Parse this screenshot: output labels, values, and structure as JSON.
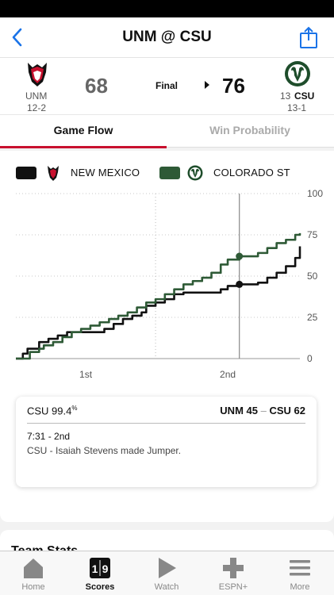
{
  "header": {
    "title": "UNM @ CSU"
  },
  "game": {
    "status": "Final",
    "home": {
      "abbr": "UNM",
      "record": "12-2",
      "score": "68"
    },
    "away": {
      "abbr": "CSU",
      "rank": "13",
      "record": "13-1",
      "score": "76"
    }
  },
  "tabs": {
    "game_flow": "Game Flow",
    "win_probability": "Win Probability"
  },
  "legend": {
    "team1": "NEW MEXICO",
    "team2": "COLORADO ST"
  },
  "colors": {
    "new_mexico": "#111111",
    "colorado_st": "#2e5a36",
    "accent": "#c8102e"
  },
  "chart_data": {
    "type": "line",
    "x_labels": [
      "1st",
      "2nd"
    ],
    "y_ticks": [
      "0",
      "25",
      "50",
      "75",
      "100"
    ],
    "ylim": [
      0,
      100
    ],
    "series": [
      {
        "name": "NEW MEXICO",
        "values": [
          [
            0,
            0
          ],
          [
            3,
            3
          ],
          [
            5,
            6
          ],
          [
            8,
            6
          ],
          [
            10,
            10
          ],
          [
            14,
            12
          ],
          [
            18,
            14
          ],
          [
            22,
            16
          ],
          [
            26,
            16
          ],
          [
            30,
            16
          ],
          [
            34,
            16
          ],
          [
            38,
            18
          ],
          [
            42,
            21
          ],
          [
            46,
            24
          ],
          [
            50,
            26
          ],
          [
            54,
            28
          ],
          [
            56,
            32
          ],
          [
            60,
            34
          ],
          [
            64,
            36
          ],
          [
            68,
            39
          ],
          [
            72,
            40
          ],
          [
            76,
            40
          ],
          [
            80,
            40
          ],
          [
            84,
            40
          ],
          [
            88,
            42
          ],
          [
            91,
            44
          ],
          [
            96,
            45
          ],
          [
            100,
            45
          ],
          [
            104,
            46
          ],
          [
            108,
            49
          ],
          [
            112,
            52
          ],
          [
            116,
            56
          ],
          [
            120,
            61
          ],
          [
            122,
            68
          ]
        ]
      },
      {
        "name": "COLORADO ST",
        "values": [
          [
            0,
            0
          ],
          [
            4,
            0
          ],
          [
            6,
            4
          ],
          [
            8,
            4
          ],
          [
            10,
            6
          ],
          [
            12,
            8
          ],
          [
            16,
            10
          ],
          [
            20,
            13
          ],
          [
            24,
            16
          ],
          [
            28,
            18
          ],
          [
            32,
            20
          ],
          [
            36,
            22
          ],
          [
            40,
            24
          ],
          [
            44,
            26
          ],
          [
            48,
            28
          ],
          [
            52,
            31
          ],
          [
            56,
            34
          ],
          [
            60,
            36
          ],
          [
            64,
            39
          ],
          [
            68,
            42
          ],
          [
            72,
            45
          ],
          [
            76,
            47
          ],
          [
            80,
            49
          ],
          [
            84,
            52
          ],
          [
            88,
            57
          ],
          [
            91,
            60
          ],
          [
            96,
            62
          ],
          [
            100,
            62
          ],
          [
            104,
            64
          ],
          [
            108,
            67
          ],
          [
            112,
            70
          ],
          [
            116,
            72
          ],
          [
            120,
            75
          ],
          [
            122,
            76
          ]
        ]
      }
    ],
    "x_max": 122,
    "halftime_x": 60,
    "cursor_x": 96,
    "markers": [
      {
        "team": "NEW MEXICO",
        "x": 96,
        "y": 45
      },
      {
        "team": "COLORADO ST",
        "x": 96,
        "y": 62
      }
    ]
  },
  "play": {
    "win_prob_label": "CSU 99.4",
    "win_prob_suffix": "%",
    "score_left": "UNM 45",
    "score_sep": "–",
    "score_right": "CSU 62",
    "time": "7:31 - 2nd",
    "description": "CSU - Isaiah Stevens made Jumper."
  },
  "next_section": {
    "title": "Team Stats"
  },
  "tabbar": {
    "items": [
      {
        "label": "Home",
        "icon": "home-icon"
      },
      {
        "label": "Scores",
        "icon": "scores-icon"
      },
      {
        "label": "Watch",
        "icon": "play-icon"
      },
      {
        "label": "ESPN+",
        "icon": "plus-icon"
      },
      {
        "label": "More",
        "icon": "menu-icon"
      }
    ]
  }
}
